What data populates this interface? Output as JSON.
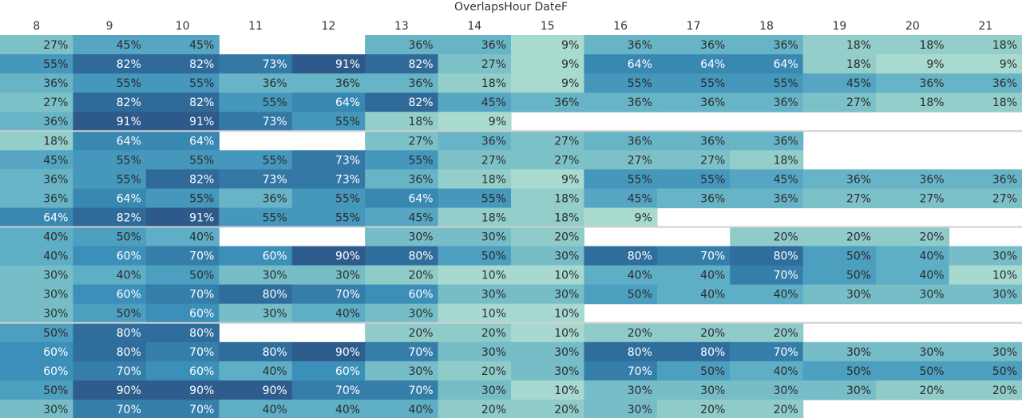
{
  "chart_data": {
    "type": "heatmap",
    "title": "OverlapsHour DateF",
    "columns": [
      "8",
      "9",
      "10",
      "11",
      "12",
      "13",
      "14",
      "15",
      "16",
      "17",
      "18",
      "19",
      "20",
      "21"
    ],
    "groups": [
      {
        "rows": [
          [
            27,
            45,
            45,
            null,
            null,
            36,
            36,
            9,
            36,
            36,
            36,
            18,
            18,
            18
          ],
          [
            55,
            82,
            82,
            73,
            91,
            82,
            27,
            9,
            64,
            64,
            64,
            18,
            9,
            9
          ],
          [
            36,
            55,
            55,
            36,
            36,
            36,
            18,
            9,
            55,
            55,
            55,
            45,
            36,
            36
          ],
          [
            27,
            82,
            82,
            55,
            64,
            82,
            45,
            36,
            36,
            36,
            36,
            27,
            18,
            18
          ],
          [
            36,
            91,
            91,
            73,
            55,
            18,
            9,
            null,
            null,
            null,
            null,
            null,
            null,
            null
          ]
        ]
      },
      {
        "rows": [
          [
            18,
            64,
            64,
            null,
            null,
            27,
            36,
            27,
            36,
            36,
            36,
            null,
            null,
            null
          ],
          [
            45,
            55,
            55,
            55,
            73,
            55,
            27,
            27,
            27,
            27,
            18,
            null,
            null,
            null
          ],
          [
            36,
            55,
            82,
            73,
            73,
            36,
            18,
            9,
            55,
            55,
            45,
            36,
            36,
            36
          ],
          [
            36,
            64,
            55,
            36,
            55,
            64,
            55,
            18,
            45,
            36,
            36,
            27,
            27,
            27
          ],
          [
            64,
            82,
            91,
            55,
            55,
            45,
            18,
            18,
            9,
            null,
            null,
            null,
            null,
            null
          ]
        ]
      },
      {
        "rows": [
          [
            40,
            50,
            40,
            null,
            null,
            30,
            30,
            20,
            null,
            null,
            20,
            20,
            20,
            null
          ],
          [
            40,
            60,
            70,
            60,
            90,
            80,
            50,
            30,
            80,
            70,
            80,
            50,
            40,
            30
          ],
          [
            30,
            40,
            50,
            30,
            30,
            20,
            10,
            10,
            40,
            40,
            70,
            50,
            40,
            10
          ],
          [
            30,
            60,
            70,
            80,
            70,
            60,
            30,
            30,
            50,
            40,
            40,
            30,
            30,
            30
          ],
          [
            30,
            50,
            60,
            30,
            40,
            30,
            10,
            10,
            null,
            null,
            null,
            null,
            null,
            null
          ]
        ]
      },
      {
        "rows": [
          [
            50,
            80,
            80,
            null,
            null,
            20,
            20,
            10,
            20,
            20,
            20,
            null,
            null,
            null
          ],
          [
            60,
            80,
            70,
            80,
            90,
            70,
            30,
            30,
            80,
            80,
            70,
            30,
            30,
            30
          ],
          [
            60,
            70,
            60,
            40,
            60,
            30,
            20,
            30,
            70,
            50,
            40,
            50,
            50,
            50
          ],
          [
            50,
            90,
            90,
            90,
            70,
            70,
            30,
            10,
            30,
            30,
            30,
            30,
            20,
            20
          ],
          [
            30,
            70,
            70,
            40,
            40,
            40,
            20,
            20,
            30,
            20,
            20,
            null,
            null,
            null
          ]
        ]
      }
    ],
    "value_suffix": "%",
    "color_scale": {
      "min": 0,
      "max": 100,
      "stops": [
        "#bfe6d6",
        "#8ecbc9",
        "#5eaec6",
        "#3c8fb8",
        "#2f6d9c",
        "#2c4a7c"
      ]
    },
    "cell_text_color": "#2b2b2b",
    "dark_text_color": "#ffffff",
    "separator_color": "#cfcfcf"
  }
}
